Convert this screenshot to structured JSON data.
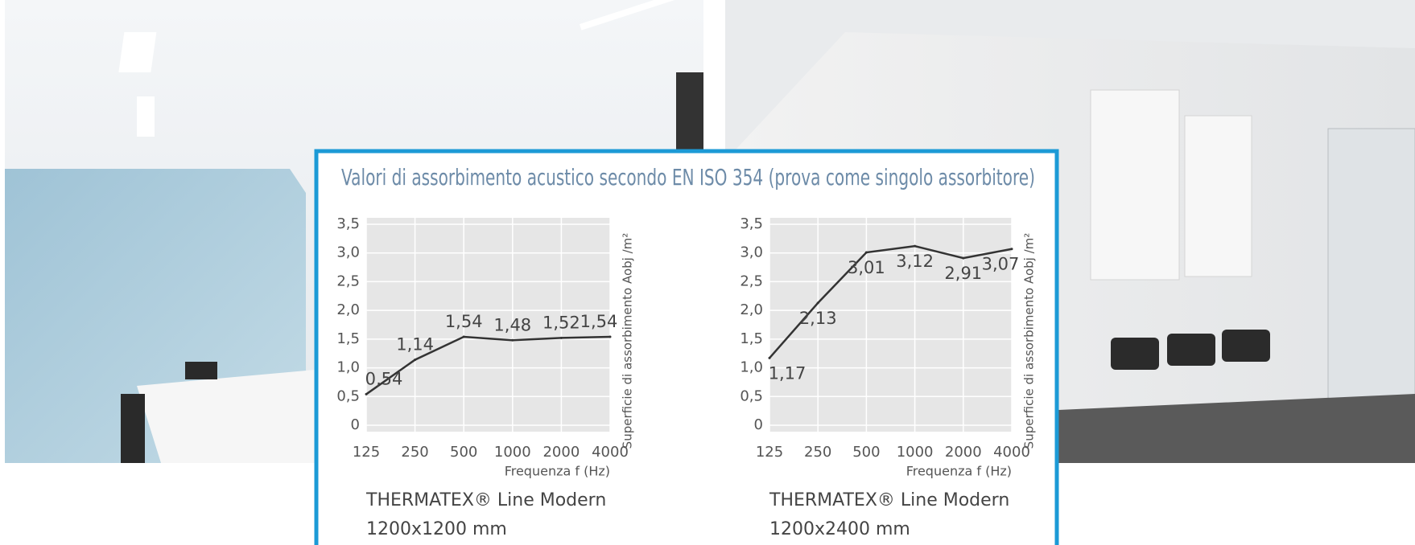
{
  "title": "Valori di assorbimento acustico secondo EN ISO 354 (prova come singolo assorbitore)",
  "chart_data": [
    {
      "type": "line",
      "categories": [
        "125",
        "250",
        "500",
        "1000",
        "2000",
        "4000"
      ],
      "values": [
        0.54,
        1.14,
        1.54,
        1.48,
        1.52,
        1.54
      ],
      "value_labels": [
        "0,54",
        "1,14",
        "1,54",
        "1,48",
        "1,52",
        "1,54"
      ],
      "color": "#333333",
      "ylim": [
        0,
        3.5
      ],
      "yticks": [
        0,
        {
          "value": 0.5,
          "label": "0,5"
        },
        {
          "value": 1,
          "label": "1,0"
        },
        {
          "value": 1.5,
          "label": "1,5"
        },
        {
          "value": 2,
          "label": "2,0"
        },
        {
          "value": 2.5,
          "label": "2,5"
        },
        {
          "value": 3,
          "label": "3,0"
        },
        {
          "value": 3.5,
          "label": "3,5"
        }
      ],
      "grid": true,
      "xlabel": "Frequenza f (Hz)",
      "ylabel": "Superficie di assorbimento Aobj /m²",
      "product": "THERMATEX® Line Modern",
      "size": "1200x1200 mm"
    },
    {
      "type": "line",
      "categories": [
        "125",
        "250",
        "500",
        "1000",
        "2000",
        "4000"
      ],
      "values": [
        1.17,
        2.13,
        3.01,
        3.12,
        2.91,
        3.07
      ],
      "value_labels": [
        "1,17",
        "2,13",
        "3,01",
        "3,12",
        "2,91",
        "3,07"
      ],
      "color": "#333333",
      "ylim": [
        0,
        3.5
      ],
      "yticks": [
        0,
        {
          "value": 0.5,
          "label": "0,5"
        },
        {
          "value": 1,
          "label": "1,0"
        },
        {
          "value": 1.5,
          "label": "1,5"
        },
        {
          "value": 2,
          "label": "2,0"
        },
        {
          "value": 2.5,
          "label": "2,5"
        },
        {
          "value": 3,
          "label": "3,0"
        },
        {
          "value": 3.5,
          "label": "3,5"
        }
      ],
      "grid": true,
      "xlabel": "Frequenza f (Hz)",
      "ylabel": "Superficie di assorbimento Aobj /m²",
      "product": "THERMATEX® Line Modern",
      "size": "1200x2400 mm"
    }
  ]
}
